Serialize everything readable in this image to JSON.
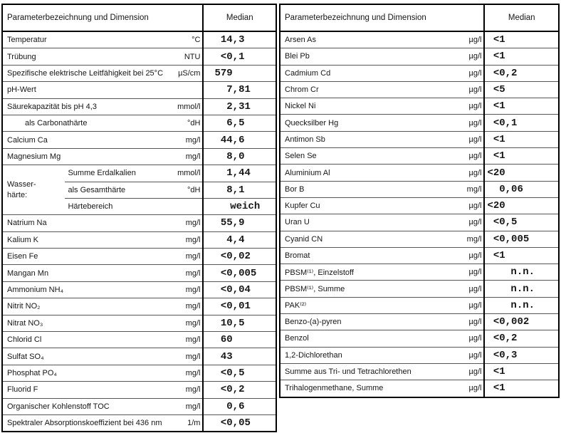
{
  "styles": {
    "outer_border_color": "#000000",
    "grid_line_color": "#565656",
    "text_color": "#161616",
    "background_color": "#ffffff"
  },
  "tables": [
    {
      "name": "physико",
      "header": {
        "param": "Parameterbezeichnung und Dimension",
        "median": "Median"
      },
      "rows": [
        {
          "label": "Temperatur",
          "unit": "°C",
          "value": "14,3"
        },
        {
          "label": "Trübung",
          "unit": "NTU",
          "value": "<0,1"
        },
        {
          "label": "Spezifische elektrische Leitfähigkeit bei 25°C",
          "unit": "µS/cm",
          "value": "579"
        },
        {
          "label": "pH-Wert",
          "unit": "",
          "value": "7,81"
        },
        {
          "label": "Säurekapazität bis pH 4,3",
          "unit": "mmol/l",
          "value": "2,31"
        },
        {
          "label": "als Carbonathärte",
          "unit": "°dH",
          "value": "6,5",
          "indent": 1
        },
        {
          "label": "Calcium Ca",
          "unit": "mg/l",
          "value": "44,6"
        },
        {
          "label": "Magnesium Mg",
          "unit": "mg/l",
          "value": "8,0"
        },
        {
          "group_label": "Wasser-\nhärte:",
          "sub_rows": [
            {
              "label": "Summe Erdalkalien",
              "unit": "mmol/l",
              "value": "1,44"
            },
            {
              "label": "als Gesamthärte",
              "unit": "°dH",
              "value": "8,1"
            },
            {
              "label": "Härtebereich",
              "unit": "",
              "value": "weich"
            }
          ]
        },
        {
          "label": "Natrium Na",
          "unit": "mg/l",
          "value": "55,9"
        },
        {
          "label": "Kalium K",
          "unit": "mg/l",
          "value": "4,4"
        },
        {
          "label": "Eisen Fe",
          "unit": "mg/l",
          "value": "<0,02"
        },
        {
          "label": "Mangan Mn",
          "unit": "mg/l",
          "value": "<0,005"
        },
        {
          "label": "Ammonium NH₄",
          "unit": "mg/l",
          "value": "<0,04"
        },
        {
          "label": "Nitrit NO₂",
          "unit": "mg/l",
          "value": "<0,01"
        },
        {
          "label": "Nitrat NO₃",
          "unit": "mg/l",
          "value": "10,5"
        },
        {
          "label": "Chlorid Cl",
          "unit": "mg/l",
          "value": "60"
        },
        {
          "label": "Sulfat SO₄",
          "unit": "mg/l",
          "value": "43"
        },
        {
          "label": "Phosphat PO₄",
          "unit": "mg/l",
          "value": "<0,5"
        },
        {
          "label": "Fluorid F",
          "unit": "mg/l",
          "value": "<0,2"
        },
        {
          "label": "Organischer Kohlenstoff TOC",
          "unit": "mg/l",
          "value": "0,6"
        },
        {
          "label": "Spektraler Absorptionskoeffizient bei 436 nm",
          "unit": "1/m",
          "value": "<0,05"
        }
      ]
    },
    {
      "name": "spurenstoffe",
      "header": {
        "param": "Parameterbezeichnung und Dimension",
        "median": "Median"
      },
      "rows": [
        {
          "label": "Arsen As",
          "unit": "µg/l",
          "value": "<1"
        },
        {
          "label": "Blei Pb",
          "unit": "µg/l",
          "value": "<1"
        },
        {
          "label": "Cadmium Cd",
          "unit": "µg/l",
          "value": "<0,2"
        },
        {
          "label": "Chrom Cr",
          "unit": "µg/l",
          "value": "<5"
        },
        {
          "label": "Nickel Ni",
          "unit": "µg/l",
          "value": "<1"
        },
        {
          "label": "Quecksilber Hg",
          "unit": "µg/l",
          "value": "<0,1"
        },
        {
          "label": "Antimon Sb",
          "unit": "µg/l",
          "value": "<1"
        },
        {
          "label": "Selen Se",
          "unit": "µg/l",
          "value": "<1"
        },
        {
          "label": "Aluminium Al",
          "unit": "µg/l",
          "value": "<20"
        },
        {
          "label": "Bor B",
          "unit": "mg/l",
          "value": "0,06"
        },
        {
          "label": "Kupfer Cu",
          "unit": "µg/l",
          "value": "<20"
        },
        {
          "label": "Uran U",
          "unit": "µg/l",
          "value": "<0,5"
        },
        {
          "label": "Cyanid CN",
          "unit": "mg/l",
          "value": "<0,005"
        },
        {
          "label": "Bromat",
          "unit": "µg/l",
          "value": "<1"
        },
        {
          "label": "PBSM⁽¹⁾, Einzelstoff",
          "unit": "µg/l",
          "value": "n.n."
        },
        {
          "label": "PBSM⁽¹⁾, Summe",
          "unit": "µg/l",
          "value": "n.n."
        },
        {
          "label": "PAK⁽²⁾",
          "unit": "µg/l",
          "value": "n.n."
        },
        {
          "label": "Benzo-(a)-pyren",
          "unit": "µg/l",
          "value": "<0,002"
        },
        {
          "label": "Benzol",
          "unit": "µg/l",
          "value": "<0,2"
        },
        {
          "label": "1,2-Dichlorethan",
          "unit": "µg/l",
          "value": "<0,3"
        },
        {
          "label": "Summe aus Tri- und Tetrachlorethen",
          "unit": "µg/l",
          "value": "<1"
        },
        {
          "label": "Trihalogenmethane, Summe",
          "unit": "µg/l",
          "value": "<1"
        }
      ]
    }
  ]
}
